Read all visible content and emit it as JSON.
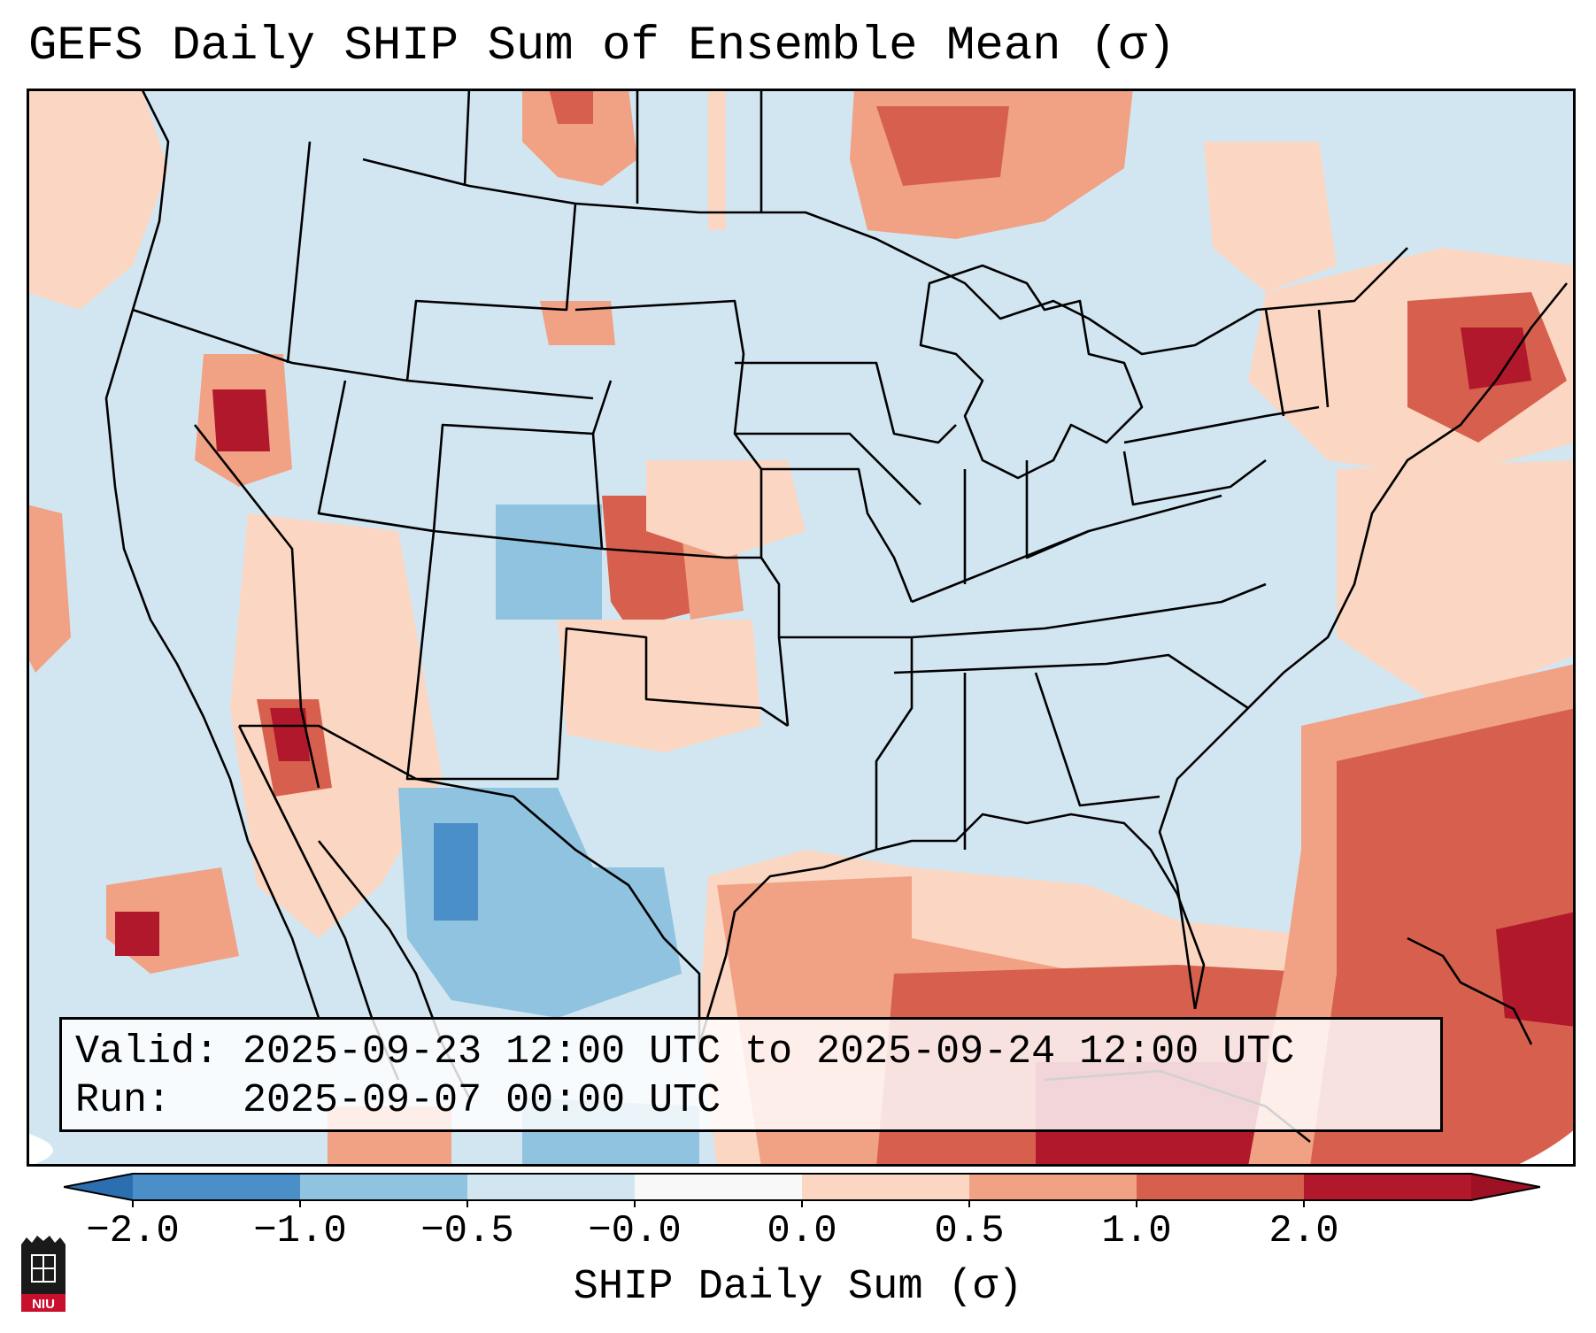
{
  "title": "GEFS Daily SHIP Sum of Ensemble Mean (σ)",
  "info": {
    "valid_line": "Valid: 2025-09-23 12:00 UTC to 2025-09-24 12:00 UTC",
    "run_line": "Run:   2025-09-07 00:00 UTC"
  },
  "colorbar": {
    "label": "SHIP Daily Sum (σ)",
    "ticks": [
      "−2.0",
      "−1.0",
      "−0.5",
      "−0.0",
      "0.0",
      "0.5",
      "1.0",
      "2.0"
    ],
    "colors": [
      "#4a8fc8",
      "#8fc3df",
      "#d2e6f1",
      "#f8f8f8",
      "#fbd7c3",
      "#f1a184",
      "#d6604d",
      "#b2182b"
    ],
    "extend_low_color": "#2c6fb0",
    "extend_high_color": "#9e1024"
  },
  "map": {
    "background_color": "#d2e6f1",
    "outside_color": "#ffffff",
    "region": "Continental United States"
  },
  "logo": {
    "text": "NIU",
    "color": "#c8102e"
  }
}
